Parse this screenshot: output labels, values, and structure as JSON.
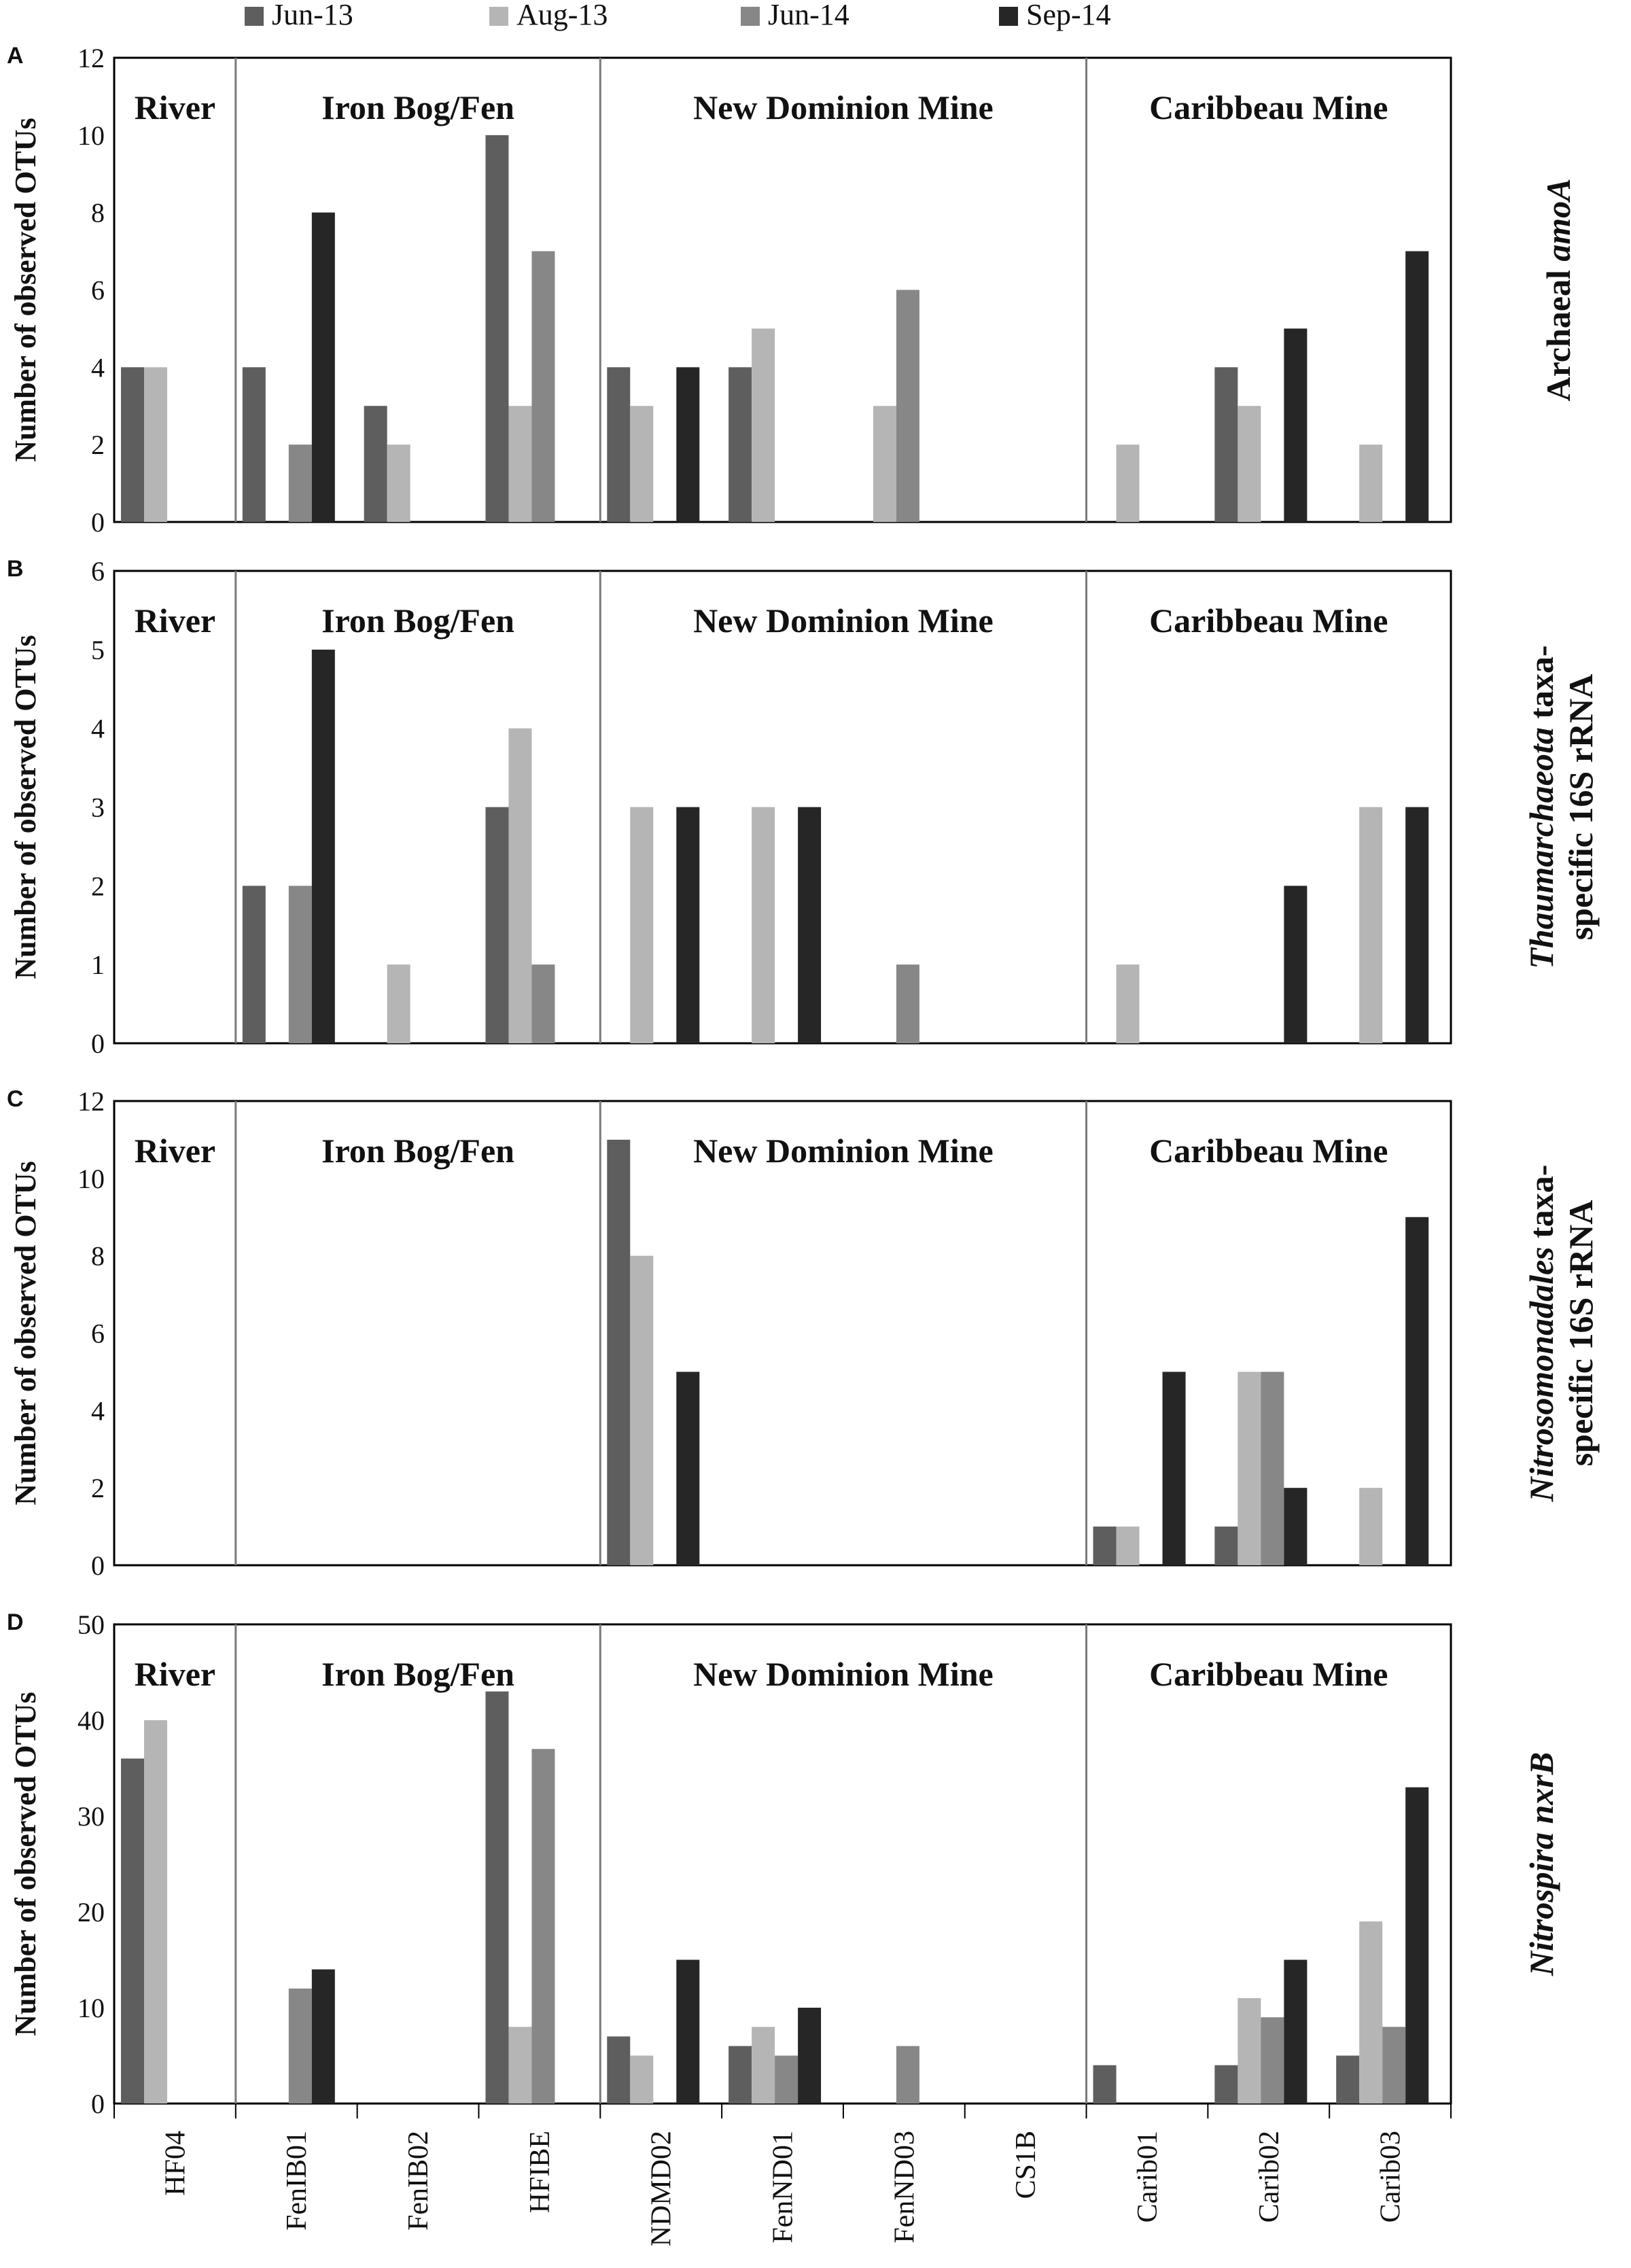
{
  "chart_data": {
    "type": "bar",
    "sites": [
      "HF04",
      "FenIB01",
      "FenIB02",
      "HFIBE",
      "NDMD02",
      "FenND01",
      "FenND03",
      "CS1B",
      "Carib01",
      "Carib02",
      "Carib03"
    ],
    "regions": [
      "River",
      "Iron Bog/Fen",
      "New Dominion Mine",
      "Caribbeau Mine"
    ],
    "legend": [
      {
        "name": "Jun-13",
        "color": "#5e5e5e"
      },
      {
        "name": "Aug-13",
        "color": "#b5b5b5"
      },
      {
        "name": "Jun-14",
        "color": "#878787"
      },
      {
        "name": "Sep-14",
        "color": "#262626"
      }
    ],
    "panels": [
      {
        "letter": "A",
        "ylabel": "Number of observed OTUs",
        "side_label": [
          {
            "text": "Archaeal ",
            "italic": false
          },
          {
            "text": "amoA",
            "italic": true
          }
        ],
        "side_label_line2": [],
        "ylim": [
          0,
          12
        ],
        "yticks": [
          0,
          2,
          4,
          6,
          8,
          10,
          12
        ],
        "series": [
          {
            "name": "Jun-13",
            "values": [
              4,
              4,
              3,
              10,
              4,
              4,
              0,
              0,
              0,
              4,
              0
            ]
          },
          {
            "name": "Aug-13",
            "values": [
              4,
              0,
              2,
              3,
              3,
              5,
              3,
              0,
              2,
              3,
              2
            ]
          },
          {
            "name": "Jun-14",
            "values": [
              0,
              2,
              0,
              7,
              0,
              0,
              6,
              0,
              0,
              0,
              0
            ]
          },
          {
            "name": "Sep-14",
            "values": [
              0,
              8,
              0,
              0,
              4,
              0,
              0,
              0,
              0,
              5,
              7
            ]
          }
        ]
      },
      {
        "letter": "B",
        "ylabel": "Number of observed OTUs",
        "side_label": [
          {
            "text": "Thaumarchaeota",
            "italic": true
          },
          {
            "text": " taxa-",
            "italic": false
          }
        ],
        "side_label_line2": [
          {
            "text": "specific 16S rRNA",
            "italic": false
          }
        ],
        "ylim": [
          0,
          6
        ],
        "yticks": [
          0,
          1,
          2,
          3,
          4,
          5,
          6
        ],
        "series": [
          {
            "name": "Jun-13",
            "values": [
              0,
              2,
              0,
              3,
              0,
              0,
              0,
              0,
              0,
              0,
              0
            ]
          },
          {
            "name": "Aug-13",
            "values": [
              0,
              0,
              1,
              4,
              3,
              3,
              0,
              0,
              1,
              0,
              3
            ]
          },
          {
            "name": "Jun-14",
            "values": [
              0,
              2,
              0,
              1,
              0,
              0,
              1,
              0,
              0,
              0,
              0
            ]
          },
          {
            "name": "Sep-14",
            "values": [
              0,
              5,
              0,
              0,
              3,
              3,
              0,
              0,
              0,
              2,
              3
            ]
          }
        ]
      },
      {
        "letter": "C",
        "ylabel": "Number of observed OTUs",
        "side_label": [
          {
            "text": "Nitrosomonadales",
            "italic": true
          },
          {
            "text": " taxa-",
            "italic": false
          }
        ],
        "side_label_line2": [
          {
            "text": "specific 16S rRNA",
            "italic": false
          }
        ],
        "ylim": [
          0,
          12
        ],
        "yticks": [
          0,
          2,
          4,
          6,
          8,
          10,
          12
        ],
        "series": [
          {
            "name": "Jun-13",
            "values": [
              0,
              0,
              0,
              0,
              11,
              0,
              0,
              0,
              1,
              1,
              0
            ]
          },
          {
            "name": "Aug-13",
            "values": [
              0,
              0,
              0,
              0,
              8,
              0,
              0,
              0,
              1,
              5,
              2
            ]
          },
          {
            "name": "Jun-14",
            "values": [
              0,
              0,
              0,
              0,
              0,
              0,
              0,
              0,
              0,
              5,
              0
            ]
          },
          {
            "name": "Sep-14",
            "values": [
              0,
              0,
              0,
              0,
              5,
              0,
              0,
              0,
              5,
              2,
              9
            ]
          }
        ]
      },
      {
        "letter": "D",
        "ylabel": "Number of observed OTUs",
        "side_label": [
          {
            "text": "Nitrospira",
            "italic": true
          },
          {
            "text": " ",
            "italic": false
          },
          {
            "text": "nxrB",
            "italic": true
          }
        ],
        "side_label_line2": [],
        "ylim": [
          0,
          50
        ],
        "yticks": [
          0,
          10,
          20,
          30,
          40,
          50
        ],
        "series": [
          {
            "name": "Jun-13",
            "values": [
              36,
              0,
              0,
              43,
              7,
              6,
              0,
              0,
              4,
              4,
              5
            ]
          },
          {
            "name": "Aug-13",
            "values": [
              40,
              0,
              0,
              8,
              5,
              8,
              0,
              0,
              0,
              11,
              19
            ]
          },
          {
            "name": "Jun-14",
            "values": [
              0,
              12,
              0,
              37,
              0,
              5,
              6,
              0,
              0,
              9,
              8
            ]
          },
          {
            "name": "Sep-14",
            "values": [
              0,
              14,
              0,
              0,
              15,
              10,
              0,
              0,
              0,
              15,
              33
            ]
          }
        ]
      }
    ]
  }
}
